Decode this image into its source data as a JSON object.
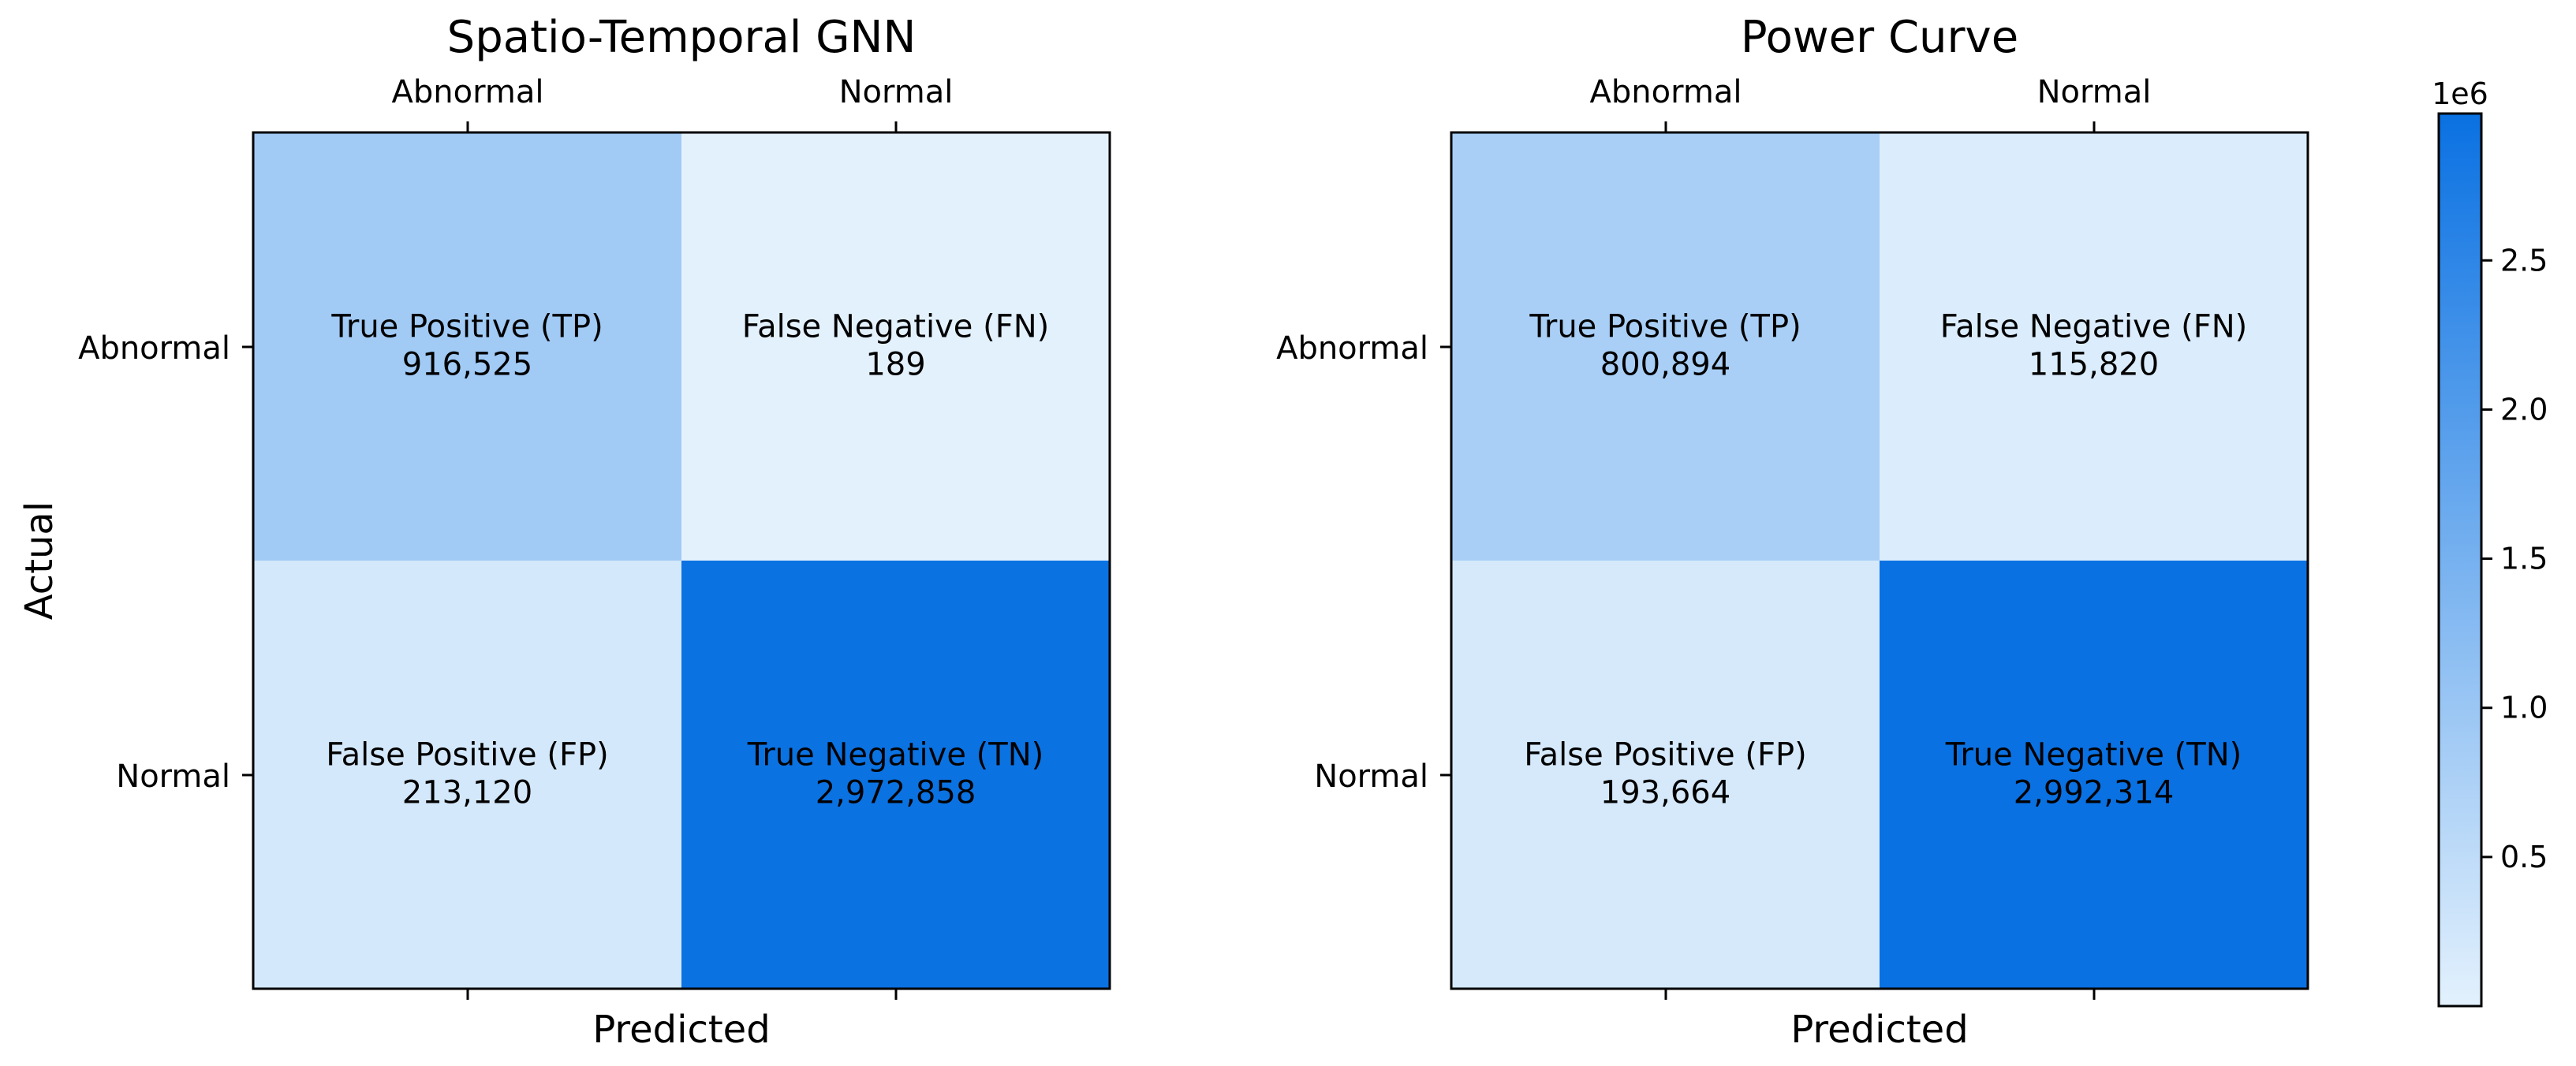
{
  "chart_data": [
    {
      "type": "heatmap",
      "title": "Spatio-Temporal GNN",
      "xlabel": "Predicted",
      "ylabel": "Actual",
      "x_categories": [
        "Abnormal",
        "Normal"
      ],
      "y_categories": [
        "Abnormal",
        "Normal"
      ],
      "cells": [
        [
          {
            "label": "True Positive (TP)",
            "value": 916525,
            "display": "916,525"
          },
          {
            "label": "False Negative (FN)",
            "value": 189,
            "display": "189"
          }
        ],
        [
          {
            "label": "False Positive (FP)",
            "value": 213120,
            "display": "213,120"
          },
          {
            "label": "True Negative (TN)",
            "value": 2972858,
            "display": "2,972,858"
          }
        ]
      ]
    },
    {
      "type": "heatmap",
      "title": "Power Curve",
      "xlabel": "Predicted",
      "ylabel": "",
      "x_categories": [
        "Abnormal",
        "Normal"
      ],
      "y_categories": [
        "Abnormal",
        "Normal"
      ],
      "cells": [
        [
          {
            "label": "True Positive (TP)",
            "value": 800894,
            "display": "800,894"
          },
          {
            "label": "False Negative (FN)",
            "value": 115820,
            "display": "115,820"
          }
        ],
        [
          {
            "label": "False Positive (FP)",
            "value": 193664,
            "display": "193,664"
          },
          {
            "label": "True Negative (TN)",
            "value": 2992314,
            "display": "2,992,314"
          }
        ]
      ]
    }
  ],
  "colorbar": {
    "exponent_label": "1e6",
    "vmin": 189,
    "vmax": 2992314,
    "ticks": [
      0.5,
      1.0,
      1.5,
      2.0,
      2.5
    ],
    "tick_labels": [
      "0.5",
      "1.0",
      "1.5",
      "2.0",
      "2.5"
    ],
    "colormap": [
      "#e3f1fd",
      "#0a71e2"
    ]
  }
}
